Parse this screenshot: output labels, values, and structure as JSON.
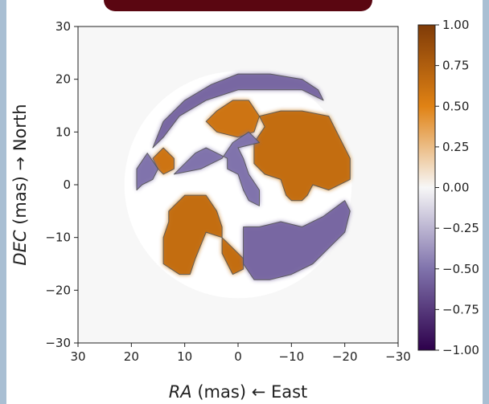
{
  "chart_data": {
    "type": "heatmap",
    "title": "",
    "xlabel_italic": "RA",
    "xlabel_rest": " (mas) ← East",
    "ylabel_italic": "DEC",
    "ylabel_rest": " (mas) → North",
    "xlim": [
      30,
      -30
    ],
    "ylim": [
      -30,
      30
    ],
    "x_ticks": [
      30,
      20,
      10,
      0,
      -10,
      -20,
      -30
    ],
    "x_tick_labels": [
      "30",
      "20",
      "10",
      "0",
      "−10",
      "−20",
      "−30"
    ],
    "y_ticks": [
      30,
      20,
      10,
      0,
      -10,
      -20,
      -30
    ],
    "y_tick_labels": [
      "30",
      "20",
      "10",
      "0",
      "−10",
      "−20",
      "−30"
    ],
    "colorbar": {
      "range": [
        -1.0,
        1.0
      ],
      "ticks": [
        1.0,
        0.75,
        0.5,
        0.25,
        0.0,
        -0.25,
        -0.5,
        -0.75,
        -1.0
      ],
      "tick_labels": [
        "1.00",
        "0.75",
        "0.50",
        "0.25",
        "0.00",
        "−0.25",
        "−0.50",
        "−0.75",
        "−1.00"
      ],
      "colors": {
        "max": "#7f3b08",
        "high": "#e08214",
        "mid": "#f7f7f7",
        "low": "#8073ac",
        "min": "#2d004b"
      }
    },
    "disk": {
      "center": [
        0,
        0
      ],
      "radius": 21
    },
    "regions": [
      {
        "sign": "positive",
        "value": 0.6,
        "polygon": [
          [
            4,
            14
          ],
          [
            1,
            16
          ],
          [
            -2,
            16
          ],
          [
            -4,
            13
          ],
          [
            -3,
            10
          ],
          [
            0,
            9
          ],
          [
            4,
            10
          ],
          [
            6,
            12
          ]
        ]
      },
      {
        "sign": "positive",
        "value": 0.65,
        "polygon": [
          [
            -4,
            13
          ],
          [
            -8,
            14
          ],
          [
            -12,
            14
          ],
          [
            -17,
            13
          ],
          [
            -19,
            9
          ],
          [
            -21,
            5
          ],
          [
            -21,
            1
          ],
          [
            -17,
            -1
          ],
          [
            -14,
            0
          ],
          [
            -13,
            -2
          ],
          [
            -12,
            -3
          ],
          [
            -10,
            -3
          ],
          [
            -9,
            -2
          ],
          [
            -8,
            1
          ],
          [
            -5,
            2
          ],
          [
            -3,
            4
          ],
          [
            -3,
            8
          ],
          [
            -5,
            11
          ]
        ]
      },
      {
        "sign": "positive",
        "value": 0.6,
        "polygon": [
          [
            14,
            7
          ],
          [
            12,
            5
          ],
          [
            12,
            3
          ],
          [
            14,
            2
          ],
          [
            15,
            3
          ],
          [
            16,
            5
          ]
        ]
      },
      {
        "sign": "positive",
        "value": 0.65,
        "polygon": [
          [
            13,
            -5
          ],
          [
            10,
            -2
          ],
          [
            6,
            -2
          ],
          [
            4,
            -5
          ],
          [
            3,
            -8
          ],
          [
            3,
            -13
          ],
          [
            2,
            -15
          ],
          [
            1,
            -17
          ],
          [
            -1,
            -16
          ],
          [
            -1,
            -14
          ],
          [
            2,
            -11
          ],
          [
            3,
            -10
          ],
          [
            6,
            -9
          ],
          [
            8,
            -14
          ],
          [
            9,
            -17
          ],
          [
            11,
            -17
          ],
          [
            14,
            -15
          ],
          [
            14,
            -10
          ],
          [
            13,
            -7
          ]
        ]
      },
      {
        "sign": "negative",
        "value": -0.55,
        "polygon": [
          [
            16,
            7
          ],
          [
            14,
            12
          ],
          [
            10,
            16
          ],
          [
            5,
            19
          ],
          [
            0,
            21
          ],
          [
            -6,
            21
          ],
          [
            -12,
            20
          ],
          [
            -15,
            18
          ],
          [
            -16,
            16
          ],
          [
            -12,
            18
          ],
          [
            -6,
            18
          ],
          [
            0,
            18
          ],
          [
            6,
            16
          ],
          [
            11,
            13
          ],
          [
            14,
            9
          ]
        ]
      },
      {
        "sign": "negative",
        "value": -0.5,
        "polygon": [
          [
            15,
            3
          ],
          [
            16,
            1
          ],
          [
            18,
            0
          ],
          [
            19,
            -1
          ],
          [
            19,
            3
          ],
          [
            17,
            6
          ]
        ]
      },
      {
        "sign": "negative",
        "value": -0.5,
        "polygon": [
          [
            12,
            2
          ],
          [
            10,
            4
          ],
          [
            8,
            6
          ],
          [
            6,
            7
          ],
          [
            4,
            6
          ],
          [
            2,
            5
          ],
          [
            2,
            3
          ],
          [
            0,
            2
          ],
          [
            -1,
            -1
          ],
          [
            -2,
            -3
          ],
          [
            -4,
            -4
          ],
          [
            -4,
            -1
          ],
          [
            -2,
            2
          ],
          [
            -1,
            5
          ],
          [
            0,
            7
          ],
          [
            -4,
            8
          ],
          [
            -2,
            10
          ],
          [
            1,
            8
          ],
          [
            3,
            5
          ],
          [
            5,
            4
          ],
          [
            7,
            3
          ]
        ]
      },
      {
        "sign": "negative",
        "value": -0.55,
        "polygon": [
          [
            -1,
            -8
          ],
          [
            -4,
            -8
          ],
          [
            -8,
            -7
          ],
          [
            -12,
            -8
          ],
          [
            -16,
            -6
          ],
          [
            -20,
            -3
          ],
          [
            -21,
            -5
          ],
          [
            -20,
            -9
          ],
          [
            -17,
            -12
          ],
          [
            -14,
            -15
          ],
          [
            -10,
            -17
          ],
          [
            -6,
            -18
          ],
          [
            -3,
            -18
          ],
          [
            -1,
            -15
          ],
          [
            -1,
            -11
          ]
        ]
      }
    ]
  }
}
